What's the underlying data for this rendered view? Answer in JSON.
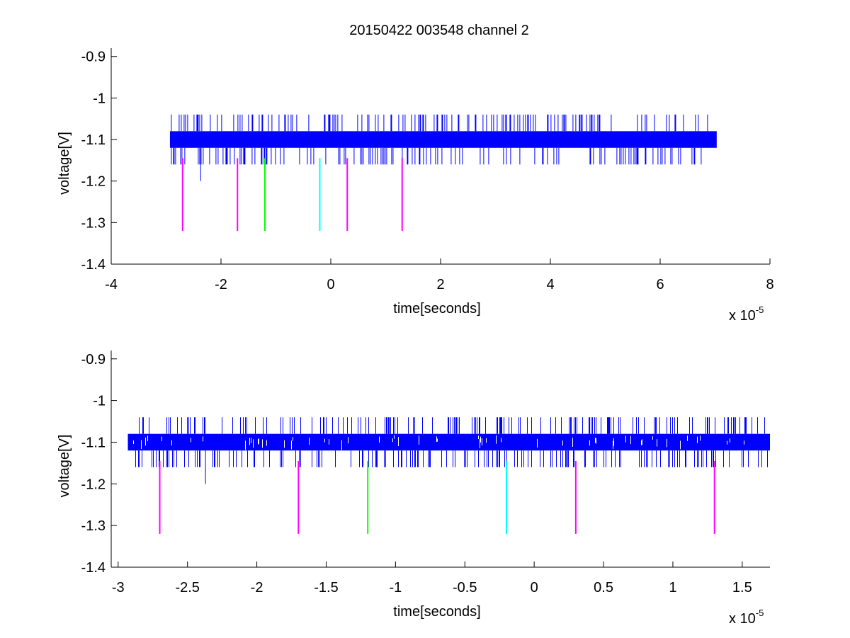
{
  "title": "20150422 003548 channel 2",
  "colors": {
    "trace": "#0000ff",
    "magenta": "#ff00ff",
    "green": "#00ff00",
    "cyan": "#00ffff",
    "axis": "#000000"
  },
  "chart_data": [
    {
      "type": "line",
      "title": "20150422 003548 channel 2",
      "xlabel": "time[seconds]",
      "ylabel": "voltage[V]",
      "x_exponent_label": "x 10",
      "x_exponent": "-5",
      "xlim": [
        -4,
        8
      ],
      "ylim": [
        -1.4,
        -0.88
      ],
      "x_ticks": [
        -4,
        -2,
        0,
        2,
        4,
        6,
        8
      ],
      "x_tick_labels": [
        "-4",
        "-2",
        "0",
        "2",
        "4",
        "6",
        "8"
      ],
      "y_ticks": [
        -1.4,
        -1.3,
        -1.2,
        -1.1,
        -1.0,
        -0.9
      ],
      "y_tick_labels": [
        "-1.4",
        "-1.3",
        "-1.2",
        "-1.1",
        "-1",
        "-0.9"
      ],
      "grid": false,
      "signal": {
        "name": "",
        "x_start": -2.93,
        "x_end": 7.03,
        "band_low": -1.12,
        "band_high": -1.08,
        "spike_high": -1.04,
        "spike_low": -1.16,
        "outlier": {
          "x": -2.37,
          "y": -1.2
        }
      },
      "markers": [
        {
          "x": -2.7,
          "y_top": -1.145,
          "y_bottom": -1.32,
          "color": "magenta"
        },
        {
          "x": -1.7,
          "y_top": -1.145,
          "y_bottom": -1.32,
          "color": "magenta"
        },
        {
          "x": -1.2,
          "y_top": -1.145,
          "y_bottom": -1.32,
          "color": "green"
        },
        {
          "x": -0.2,
          "y_top": -1.145,
          "y_bottom": -1.32,
          "color": "cyan"
        },
        {
          "x": 0.3,
          "y_top": -1.145,
          "y_bottom": -1.32,
          "color": "magenta"
        },
        {
          "x": 1.3,
          "y_top": -1.145,
          "y_bottom": -1.32,
          "color": "magenta"
        }
      ]
    },
    {
      "type": "line",
      "title": "",
      "xlabel": "time[seconds]",
      "ylabel": "voltage[V]",
      "x_exponent_label": "x 10",
      "x_exponent": "-5",
      "xlim": [
        -3.05,
        1.7
      ],
      "ylim": [
        -1.4,
        -0.88
      ],
      "x_ticks": [
        -3,
        -2.5,
        -2,
        -1.5,
        -1,
        -0.5,
        0,
        0.5,
        1,
        1.5
      ],
      "x_tick_labels": [
        "-3",
        "-2.5",
        "-2",
        "-1.5",
        "-1",
        "-0.5",
        "0",
        "0.5",
        "1",
        "1.5"
      ],
      "y_ticks": [
        -1.4,
        -1.3,
        -1.2,
        -1.1,
        -1.0,
        -0.9
      ],
      "y_tick_labels": [
        "-1.4",
        "-1.3",
        "-1.2",
        "-1.1",
        "-1",
        "-0.9"
      ],
      "grid": false,
      "signal": {
        "name": "",
        "x_start": -2.93,
        "x_end": 1.7,
        "band_low": -1.12,
        "band_high": -1.08,
        "spike_high": -1.04,
        "spike_low": -1.16,
        "outlier": {
          "x": -2.37,
          "y": -1.2
        }
      },
      "markers": [
        {
          "x": -2.7,
          "y_top": -1.145,
          "y_bottom": -1.32,
          "color": "magenta"
        },
        {
          "x": -1.7,
          "y_top": -1.145,
          "y_bottom": -1.32,
          "color": "magenta"
        },
        {
          "x": -1.2,
          "y_top": -1.145,
          "y_bottom": -1.32,
          "color": "green"
        },
        {
          "x": -0.2,
          "y_top": -1.145,
          "y_bottom": -1.32,
          "color": "cyan"
        },
        {
          "x": 0.3,
          "y_top": -1.145,
          "y_bottom": -1.32,
          "color": "magenta"
        },
        {
          "x": 1.3,
          "y_top": -1.145,
          "y_bottom": -1.32,
          "color": "magenta"
        }
      ]
    }
  ]
}
